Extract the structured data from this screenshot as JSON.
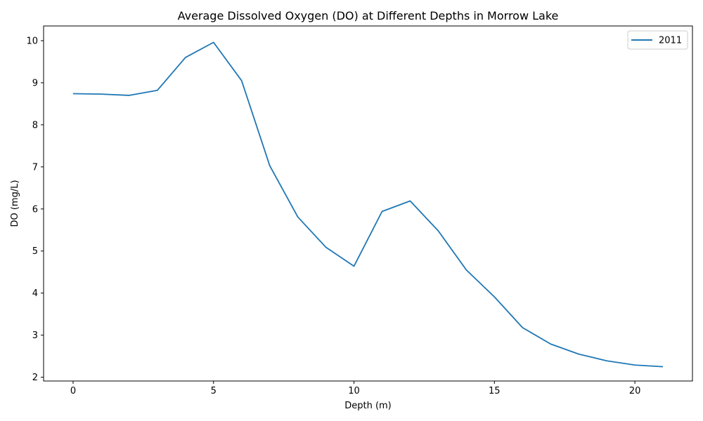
{
  "chart_data": {
    "type": "line",
    "title": "Average Dissolved Oxygen (DO) at Different Depths in Morrow Lake",
    "xlabel": "Depth (m)",
    "ylabel": "DO (mg/L)",
    "xlim": [
      -1.05,
      22.05
    ],
    "ylim": [
      1.91,
      10.35
    ],
    "xticks": [
      0,
      5,
      10,
      15,
      20
    ],
    "yticks": [
      2,
      3,
      4,
      5,
      6,
      7,
      8,
      9,
      10
    ],
    "legend": "top-right",
    "grid": false,
    "series": [
      {
        "name": "2011",
        "color": "#1f77b4",
        "x": [
          0,
          1,
          2,
          3,
          4,
          5,
          6,
          7,
          8,
          9,
          10,
          11,
          12,
          13,
          14,
          15,
          16,
          17,
          18,
          19,
          20,
          21
        ],
        "y": [
          8.74,
          8.73,
          8.7,
          8.82,
          9.6,
          9.96,
          9.05,
          7.03,
          5.81,
          5.09,
          4.64,
          5.94,
          6.19,
          5.48,
          4.55,
          3.91,
          3.18,
          2.79,
          2.55,
          2.39,
          2.29,
          2.25
        ]
      }
    ]
  }
}
